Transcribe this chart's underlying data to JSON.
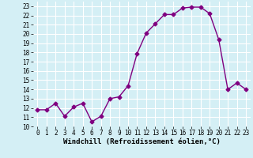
{
  "x": [
    0,
    1,
    2,
    3,
    4,
    5,
    6,
    7,
    8,
    9,
    10,
    11,
    12,
    13,
    14,
    15,
    16,
    17,
    18,
    19,
    20,
    21,
    22,
    23
  ],
  "y": [
    11.8,
    11.8,
    12.5,
    11.1,
    12.1,
    12.5,
    10.5,
    11.1,
    13.0,
    13.2,
    14.4,
    17.9,
    20.1,
    21.1,
    22.1,
    22.1,
    22.8,
    22.9,
    22.9,
    22.2,
    19.4,
    14.0,
    14.7,
    14.0
  ],
  "line_color": "#800080",
  "marker": "D",
  "marker_size": 2.5,
  "linewidth": 1.0,
  "xlabel": "Windchill (Refroidissement éolien,°C)",
  "xlim": [
    -0.5,
    23.5
  ],
  "ylim": [
    10,
    23.5
  ],
  "yticks": [
    10,
    11,
    12,
    13,
    14,
    15,
    16,
    17,
    18,
    19,
    20,
    21,
    22,
    23
  ],
  "xticks": [
    0,
    1,
    2,
    3,
    4,
    5,
    6,
    7,
    8,
    9,
    10,
    11,
    12,
    13,
    14,
    15,
    16,
    17,
    18,
    19,
    20,
    21,
    22,
    23
  ],
  "bg_color": "#d4eff5",
  "grid_color": "#ffffff",
  "tick_label_fontsize": 5.5,
  "xlabel_fontsize": 6.5
}
